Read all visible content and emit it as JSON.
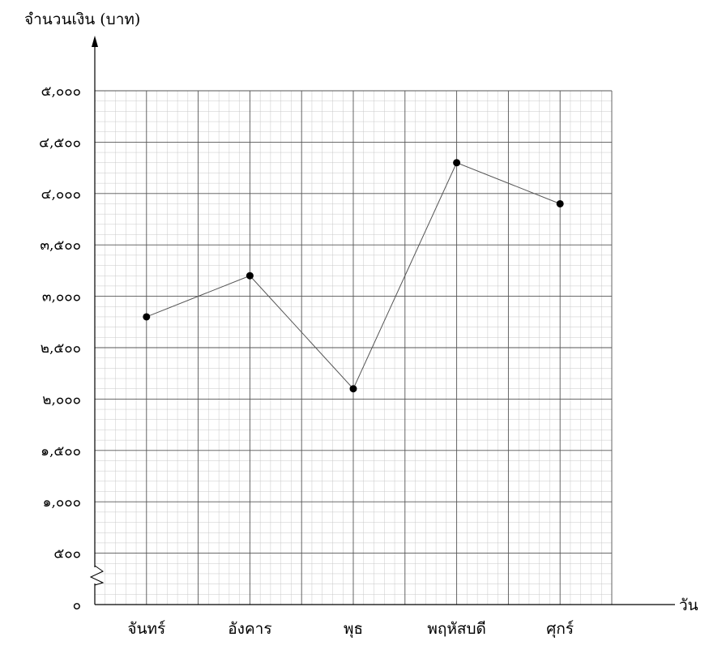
{
  "chart_data": {
    "type": "line",
    "ylabel": "จำนวนเงิน (บาท)",
    "xlabel": "วัน",
    "categories": [
      "จันทร์",
      "อังคาร",
      "พุธ",
      "พฤหัสบดี",
      "ศุกร์"
    ],
    "values": [
      2800,
      3200,
      2100,
      4300,
      3900
    ],
    "ylim": [
      0,
      5000
    ],
    "y_ticks": [
      0,
      500,
      1000,
      1500,
      2000,
      2500,
      3000,
      3500,
      4000,
      4500,
      5000
    ],
    "y_tick_labels": [
      "๐",
      "๕๐๐",
      "๑,๐๐๐",
      "๑,๕๐๐",
      "๒,๐๐๐",
      "๒,๕๐๐",
      "๓,๐๐๐",
      "๓,๕๐๐",
      "๔,๐๐๐",
      "๔,๕๐๐",
      "๕,๐๐๐"
    ],
    "grid": true,
    "axis_break": true,
    "line_color": "#555555",
    "marker_color": "#000000"
  }
}
